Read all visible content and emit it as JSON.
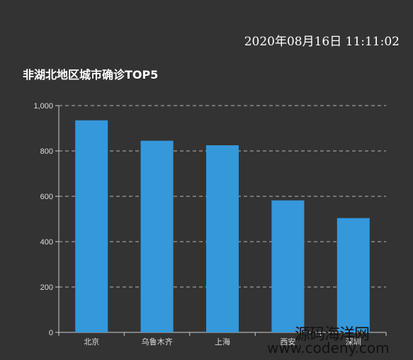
{
  "header": {
    "timestamp": "2020年08月16日 11:11:02"
  },
  "watermark": {
    "line1": "源码海洋网",
    "line2": "www.codeny.com"
  },
  "colors": {
    "background": "#333333",
    "bar": "#3498db",
    "grid": "#cccccc",
    "text": "#ffffff"
  },
  "chart_data": {
    "type": "bar",
    "title": "非湖北地区城市确诊TOP5",
    "categories": [
      "北京",
      "乌鲁木齐",
      "上海",
      "西安",
      "深圳"
    ],
    "values": [
      935,
      845,
      825,
      582,
      504
    ],
    "ylim": [
      0,
      1000
    ],
    "yticks": [
      0,
      200,
      400,
      600,
      800,
      1000
    ],
    "ytick_labels": [
      "0",
      "200",
      "400",
      "600",
      "800",
      "1,000"
    ],
    "xlabel": "",
    "ylabel": "",
    "grid": true,
    "legend": false
  }
}
